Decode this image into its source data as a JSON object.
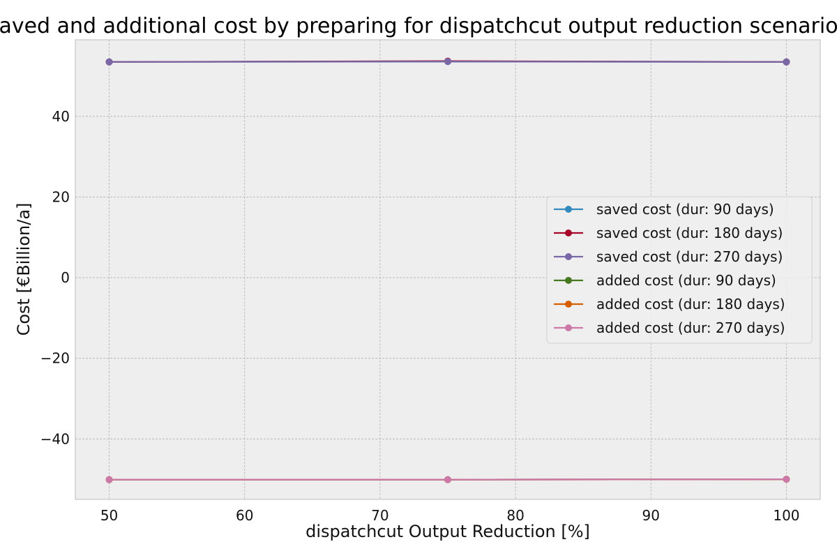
{
  "chart_data": {
    "type": "line",
    "title": "saved and additional cost by preparing for dispatchcut output reduction scenarios",
    "xlabel": "dispatchcut Output Reduction [%]",
    "ylabel": "Cost [€Billion/a]",
    "x": [
      50,
      75,
      100
    ],
    "xlim": [
      47.5,
      102.5
    ],
    "ylim": [
      -55,
      59
    ],
    "xticks": [
      50,
      60,
      70,
      80,
      90,
      100
    ],
    "yticks": [
      -40,
      -20,
      0,
      20,
      40
    ],
    "ytick_labels": [
      "−40",
      "−20",
      "0",
      "20",
      "40"
    ],
    "grid": true,
    "legend_position": "center-right",
    "series": [
      {
        "name": "saved cost (dur: 90 days)",
        "color": "#348abd",
        "values": [
          53.5,
          53.6,
          53.5
        ]
      },
      {
        "name": "saved cost (dur: 180 days)",
        "color": "#a60628",
        "values": [
          53.5,
          53.7,
          53.5
        ]
      },
      {
        "name": "saved cost (dur: 270 days)",
        "color": "#7a68a6",
        "values": [
          53.5,
          53.6,
          53.5
        ]
      },
      {
        "name": "added cost (dur: 90 days)",
        "color": "#467821",
        "values": [
          -50.1,
          -50.1,
          -50.0
        ]
      },
      {
        "name": "added cost (dur: 180 days)",
        "color": "#d55e00",
        "values": [
          -50.1,
          -50.1,
          -50.0
        ]
      },
      {
        "name": "added cost (dur: 270 days)",
        "color": "#cc79a7",
        "values": [
          -50.1,
          -50.1,
          -50.0
        ]
      }
    ]
  }
}
